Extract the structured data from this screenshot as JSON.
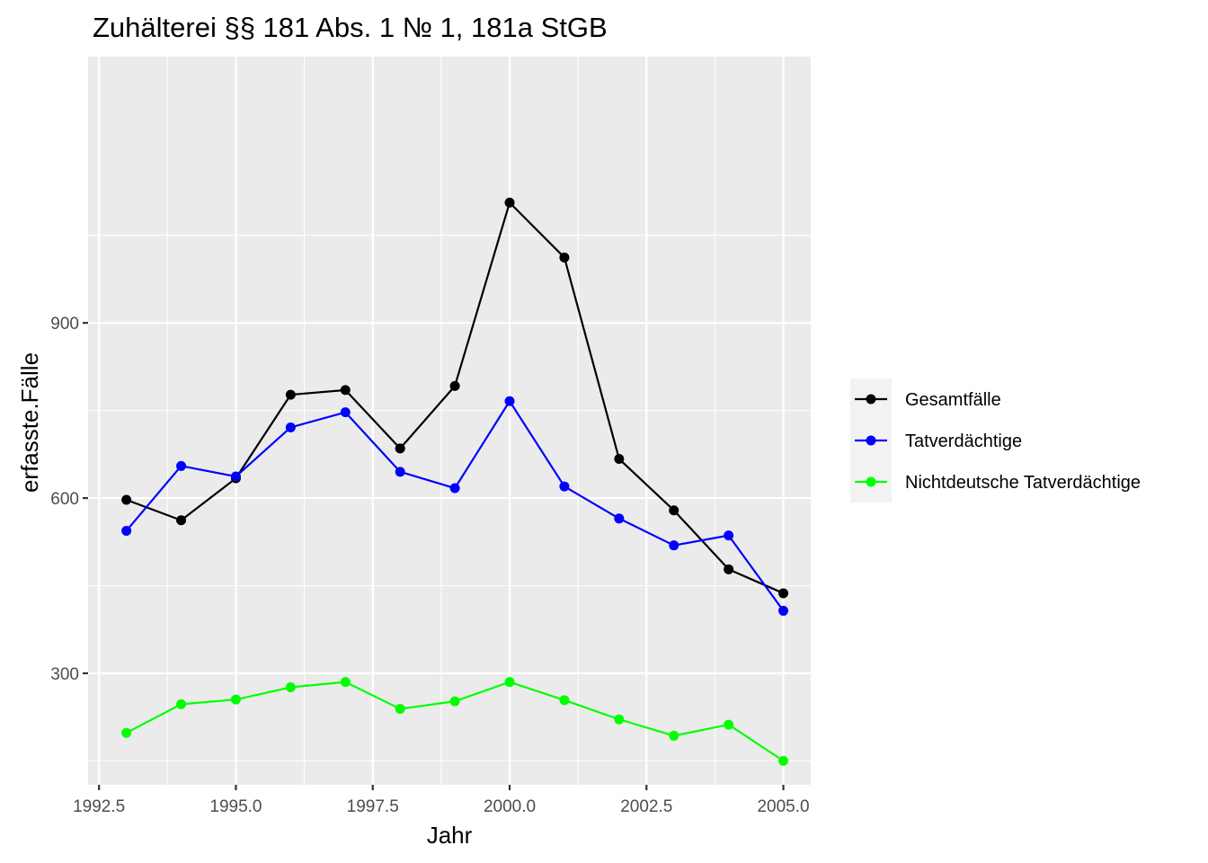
{
  "chart_data": {
    "type": "line",
    "title": "Zuhälterei §§ 181 Abs. 1 № 1, 181a StGB",
    "xlabel": "Jahr",
    "ylabel": "erfasste.Fälle",
    "xlim": [
      1992.3,
      2005.5
    ],
    "ylim": [
      109,
      1356
    ],
    "x_ticks": [
      "1992.5",
      "1995.0",
      "1997.5",
      "2000.0",
      "2002.5",
      "2005.0"
    ],
    "y_ticks": [
      "300",
      "600",
      "900"
    ],
    "x_tick_values": [
      1992.5,
      1995.0,
      1997.5,
      2000.0,
      2002.5,
      2005.0
    ],
    "y_tick_values": [
      300,
      600,
      900
    ],
    "grid": true,
    "legend_position": "right",
    "x": [
      1993,
      1994,
      1995,
      1996,
      1997,
      1998,
      1999,
      2000,
      2001,
      2002,
      2003,
      2004,
      2005
    ],
    "series": [
      {
        "name": "Gesamtfälle",
        "color": "#000000",
        "values": [
          597,
          562,
          634,
          777,
          785,
          685,
          792,
          1106,
          1012,
          667,
          579,
          478,
          437
        ]
      },
      {
        "name": "Tatverdächtige",
        "color": "#0000ff",
        "values": [
          544,
          655,
          637,
          721,
          747,
          645,
          617,
          766,
          620,
          565,
          519,
          536,
          407
        ]
      },
      {
        "name": "Nichtdeutsche Tatverdächtige",
        "color": "#00ff00",
        "values": [
          198,
          247,
          255,
          276,
          285,
          239,
          252,
          285,
          254,
          221,
          193,
          212,
          150
        ]
      }
    ]
  }
}
